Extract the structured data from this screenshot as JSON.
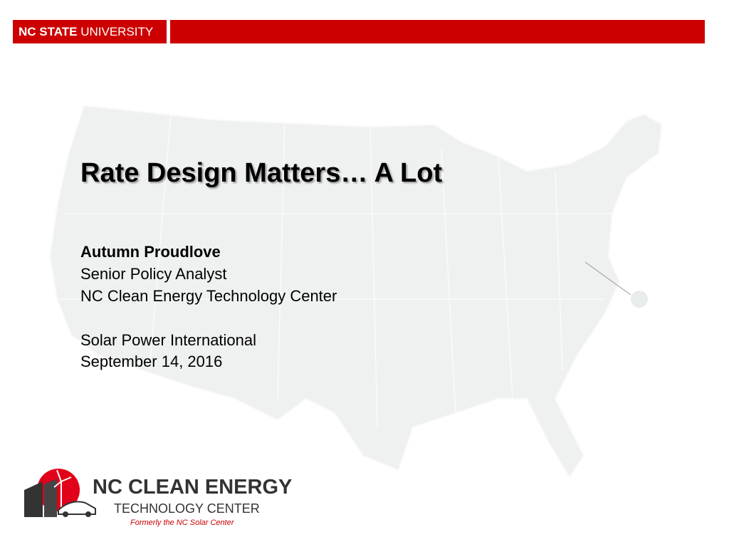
{
  "header": {
    "brand_bold": "NC STATE",
    "brand_light": "UNIVERSITY"
  },
  "slide": {
    "title": "Rate Design Matters… A Lot",
    "presenter": "Autumn Proudlove",
    "role": "Senior Policy Analyst",
    "organization": "NC Clean Energy Technology Center",
    "event": "Solar Power International",
    "date": "September 14, 2016"
  },
  "logo": {
    "line1": "NC CLEAN ENERGY",
    "line2": "TECHNOLOGY CENTER",
    "note": "Formerly the NC Solar Center"
  }
}
